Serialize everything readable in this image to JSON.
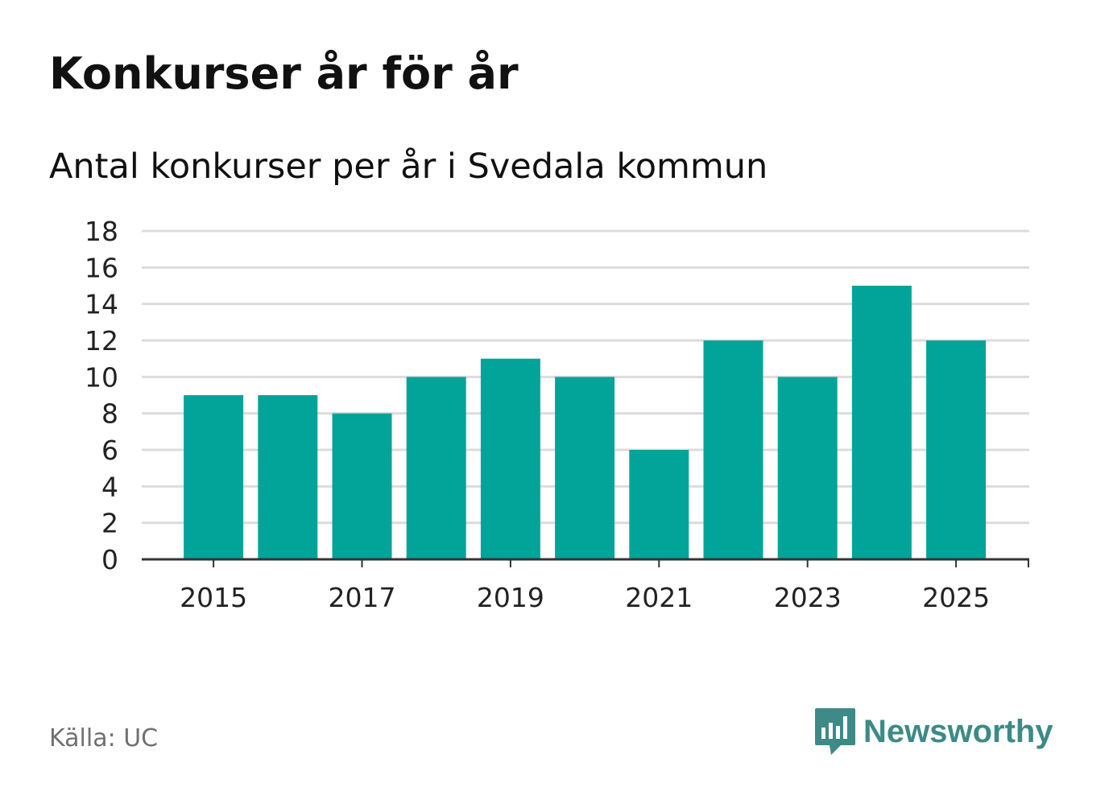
{
  "header": {
    "title": "Konkurser år för år",
    "subtitle": "Antal konkurser per år i Svedala kommun"
  },
  "footer": {
    "source": "Källa: UC",
    "brand": "Newsworthy",
    "brand_icon": "bar-chart-logo-icon"
  },
  "colors": {
    "bar": "#02a49a",
    "grid": "#dcdcdc",
    "axis": "#333333",
    "brand": "#3d8a87"
  },
  "chart_data": {
    "type": "bar",
    "title": "Konkurser år för år",
    "subtitle": "Antal konkurser per år i Svedala kommun",
    "xlabel": "",
    "ylabel": "",
    "categories": [
      "2015",
      "2016",
      "2017",
      "2018",
      "2019",
      "2020",
      "2021",
      "2022",
      "2023",
      "2024",
      "2025"
    ],
    "values": [
      9,
      9,
      8,
      10,
      11,
      10,
      6,
      12,
      10,
      15,
      12
    ],
    "x_tick_labels": [
      "2015",
      "2017",
      "2019",
      "2021",
      "2023",
      "2025"
    ],
    "y_ticks": [
      0,
      2,
      4,
      6,
      8,
      10,
      12,
      14,
      16,
      18
    ],
    "ylim": [
      0,
      18
    ],
    "grid": true,
    "legend": "none"
  }
}
